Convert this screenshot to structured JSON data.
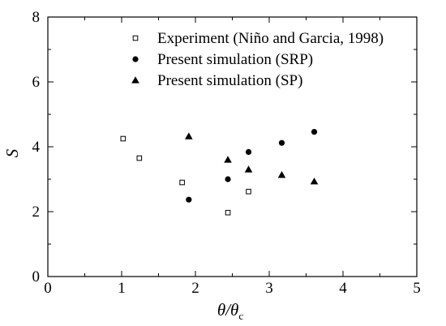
{
  "chart_data": {
    "type": "scatter",
    "xlabel": "θ/θc",
    "xlabel_main": "θ/θ",
    "xlabel_sub": "c",
    "ylabel": "S",
    "xlim": [
      0,
      5
    ],
    "ylim": [
      0,
      8
    ],
    "xticks": [
      0,
      1,
      2,
      3,
      4,
      5
    ],
    "xtick_labels": [
      "0",
      "1",
      "2",
      "3",
      "4",
      "5"
    ],
    "yticks": [
      0,
      2,
      4,
      6,
      8
    ],
    "ytick_labels": [
      "0",
      "2",
      "4",
      "6",
      "8"
    ],
    "grid": false,
    "legend_position": "top-right",
    "series": [
      {
        "name": "Experiment (Niño and Garcia, 1998)",
        "marker": "open-square",
        "color": "#000000",
        "x": [
          1.02,
          1.24,
          1.82,
          2.44,
          2.72
        ],
        "y": [
          4.25,
          3.65,
          2.9,
          1.97,
          2.62
        ]
      },
      {
        "name": "Present simulation (SRP)",
        "marker": "filled-circle",
        "color": "#000000",
        "x": [
          1.91,
          2.44,
          2.72,
          3.17,
          3.61
        ],
        "y": [
          2.37,
          3.0,
          3.84,
          4.12,
          4.46
        ]
      },
      {
        "name": "Present simulation (SP)",
        "marker": "filled-triangle",
        "color": "#000000",
        "x": [
          1.91,
          2.44,
          2.72,
          3.17,
          3.61
        ],
        "y": [
          4.32,
          3.6,
          3.3,
          3.13,
          2.93
        ]
      }
    ]
  }
}
